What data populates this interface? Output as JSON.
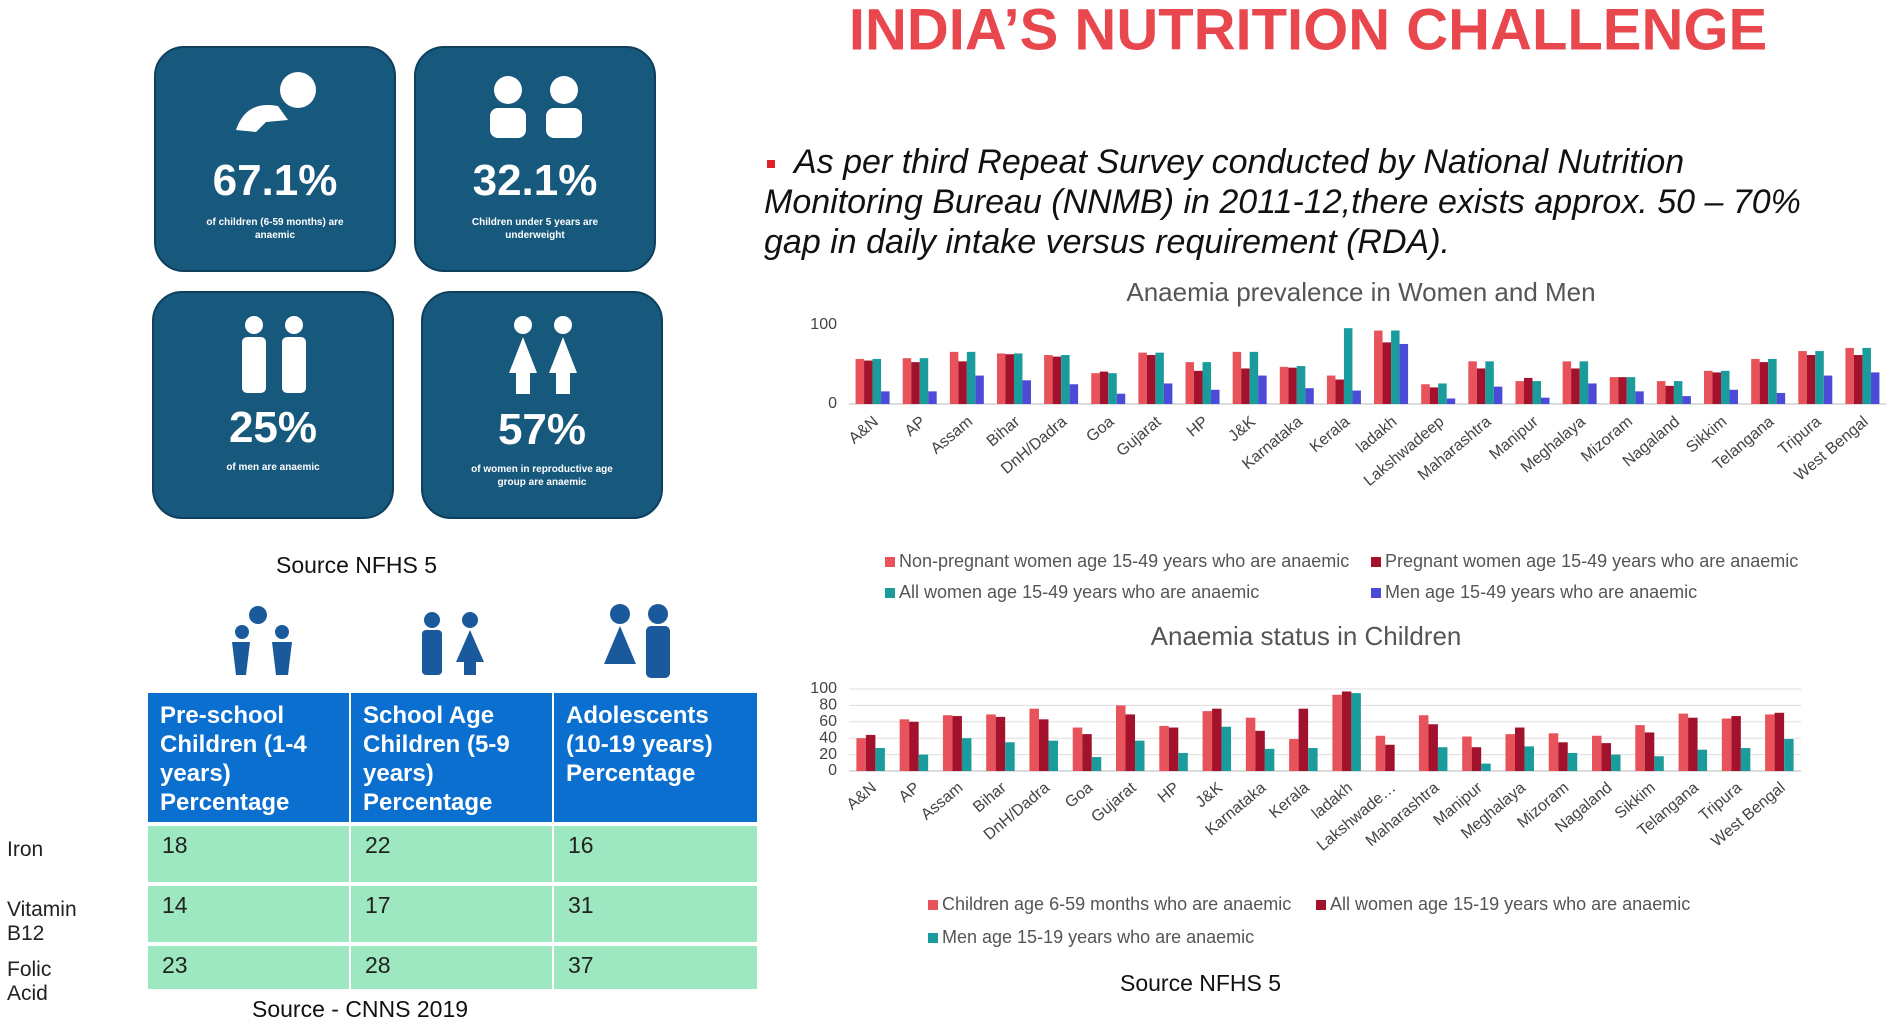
{
  "title": "INDIA’S NUTRITION CHALLENGE",
  "bullet": "As per third Repeat Survey conducted by National Nutrition Monitoring Bureau (NNMB) in 2011-12,there exists approx. 50 – 70% gap in daily intake versus requirement (RDA).",
  "cards": [
    {
      "value": "67.1%",
      "caption": "of children (6-59 months) are anaemic"
    },
    {
      "value": "32.1%",
      "caption": "Children under 5 years are underweight"
    },
    {
      "value": "25%",
      "caption": "of men are anaemic"
    },
    {
      "value": "57%",
      "caption": "of women in reproductive age group are anaemic"
    }
  ],
  "cards_source": "Source NFHS 5",
  "table": {
    "columns": [
      "Pre-school Children (1-4 years) Percentage",
      "School Age Children (5-9 years) Percentage",
      "Adolescents (10-19 years) Percentage"
    ],
    "rows": [
      [
        "Iron",
        18,
        22,
        16
      ],
      [
        "Vitamin B12",
        14,
        17,
        31
      ],
      [
        "Folic Acid",
        23,
        28,
        37
      ]
    ],
    "source": "Source - CNNS 2019"
  },
  "chart_data": [
    {
      "type": "bar",
      "title": "Anaemia prevalence in Women and Men",
      "categories": [
        "A&N",
        "AP",
        "Assam",
        "Bihar",
        "DnH/Dadra",
        "Goa",
        "Gujarat",
        "HP",
        "J&K",
        "Karnataka",
        "Kerala",
        "ladakh",
        "Lakshwadeep",
        "Maharashtra",
        "Manipur",
        "Meghalaya",
        "Mizoram",
        "Nagaland",
        "Sikkim",
        "Telangana",
        "Tripura",
        "West Bengal"
      ],
      "series": [
        {
          "name": "Non-pregnant women age 15-49 years who are anaemic",
          "color": "#e8525a",
          "values": [
            57,
            58,
            66,
            64,
            62,
            39,
            65,
            53,
            66,
            47,
            36,
            93,
            25,
            54,
            29,
            54,
            34,
            29,
            42,
            57,
            67,
            71
          ]
        },
        {
          "name": "Pregnant women age 15-49 years who are anaemic",
          "color": "#a3122c",
          "values": [
            55,
            53,
            54,
            63,
            60,
            41,
            62,
            42,
            45,
            46,
            31,
            78,
            21,
            45,
            33,
            45,
            34,
            23,
            40,
            53,
            62,
            62
          ]
        },
        {
          "name": "All women age 15-49 years who are anaemic",
          "color": "#1a9c9c",
          "values": [
            57,
            58,
            66,
            64,
            62,
            39,
            65,
            53,
            66,
            48,
            96,
            93,
            26,
            54,
            29,
            54,
            34,
            29,
            42,
            57,
            67,
            71
          ]
        },
        {
          "name": "Men age 15-49 years who are anaemic",
          "color": "#4b4bd8",
          "values": [
            16,
            16,
            36,
            30,
            25,
            13,
            26,
            18,
            36,
            20,
            17,
            76,
            7,
            22,
            8,
            26,
            16,
            10,
            18,
            14,
            36,
            40
          ]
        }
      ],
      "ylim": [
        0,
        100
      ],
      "yticks": [
        0,
        100
      ],
      "grid": false,
      "legend": "bottom"
    },
    {
      "type": "bar",
      "title": "Anaemia status in Children",
      "categories": [
        "A&N",
        "AP",
        "Assam",
        "Bihar",
        "DnH/Dadra",
        "Goa",
        "Gujarat",
        "HP",
        "J&K",
        "Karnataka",
        "Kerala",
        "ladakh",
        "Lakshwade…",
        "Maharashtra",
        "Manipur",
        "Meghalaya",
        "Mizoram",
        "Nagaland",
        "Sikkim",
        "Telangana",
        "Tripura",
        "West Bengal"
      ],
      "series": [
        {
          "name": "Children age 6-59 months who are anaemic",
          "color": "#e8525a",
          "values": [
            40,
            63,
            68,
            69,
            76,
            53,
            80,
            55,
            73,
            65,
            39,
            93,
            43,
            68,
            42,
            45,
            46,
            43,
            56,
            70,
            64,
            69
          ]
        },
        {
          "name": "All women age 15-19 years who are anaemic",
          "color": "#a3122c",
          "values": [
            44,
            60,
            67,
            66,
            63,
            45,
            69,
            53,
            76,
            49,
            76,
            97,
            32,
            57,
            29,
            53,
            35,
            34,
            47,
            65,
            67,
            71
          ]
        },
        {
          "name": "Men age 15-19 years who are anaemic",
          "color": "#1a9c9c",
          "values": [
            28,
            20,
            40,
            35,
            37,
            17,
            37,
            22,
            54,
            27,
            28,
            95,
            null,
            29,
            9,
            30,
            22,
            20,
            18,
            26,
            28,
            39
          ]
        }
      ],
      "ylim": [
        0,
        100
      ],
      "yticks": [
        0,
        20,
        40,
        60,
        80,
        100
      ],
      "grid": true,
      "legend": "bottom"
    }
  ],
  "charts_source": "Source NFHS 5"
}
